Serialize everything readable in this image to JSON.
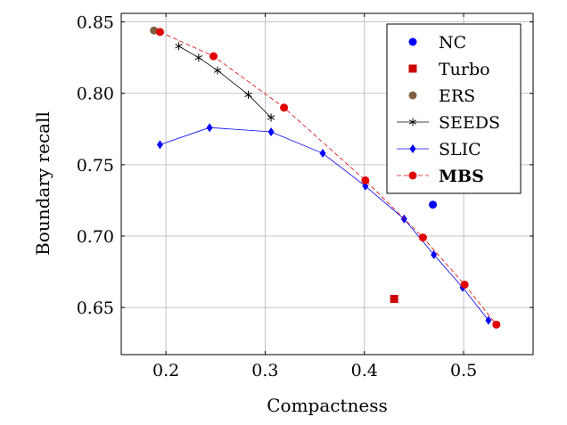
{
  "chart_data": {
    "type": "line",
    "xlabel": "Compactness",
    "ylabel": "Boundary recall",
    "xlim": [
      0.155,
      0.57
    ],
    "ylim": [
      0.617,
      0.856
    ],
    "x_ticks": [
      0.2,
      0.3,
      0.4,
      0.5
    ],
    "x_tick_labels": [
      "0.2",
      "0.3",
      "0.4",
      "0.5"
    ],
    "y_ticks": [
      0.65,
      0.7,
      0.75,
      0.8,
      0.85
    ],
    "y_tick_labels": [
      "0.65",
      "0.70",
      "0.75",
      "0.80",
      "0.85"
    ],
    "grid": true,
    "legend_position": "top-right",
    "series": [
      {
        "name": "NC",
        "color": "#0000ff",
        "marker": "circle",
        "line": "none",
        "points": [
          [
            0.469,
            0.722
          ]
        ]
      },
      {
        "name": "Turbo",
        "color": "#cc0000",
        "marker": "square",
        "line": "none",
        "points": [
          [
            0.43,
            0.656
          ]
        ]
      },
      {
        "name": "ERS",
        "color": "#7f5f3f",
        "marker": "circle",
        "line": "none",
        "points": [
          [
            0.188,
            0.844
          ]
        ]
      },
      {
        "name": "SEEDS",
        "color": "#000000",
        "marker": "star",
        "line": "solid",
        "points": [
          [
            0.213,
            0.833
          ],
          [
            0.233,
            0.825
          ],
          [
            0.252,
            0.816
          ],
          [
            0.283,
            0.799
          ],
          [
            0.306,
            0.783
          ]
        ]
      },
      {
        "name": "SLIC",
        "color": "#0000ff",
        "marker": "diamond",
        "line": "solid",
        "points": [
          [
            0.194,
            0.764
          ],
          [
            0.244,
            0.776
          ],
          [
            0.306,
            0.773
          ],
          [
            0.358,
            0.758
          ],
          [
            0.401,
            0.735
          ],
          [
            0.44,
            0.712
          ],
          [
            0.47,
            0.687
          ],
          [
            0.499,
            0.664
          ],
          [
            0.525,
            0.641
          ]
        ]
      },
      {
        "name": "MBS",
        "color": "#e00000",
        "marker": "circle",
        "line": "dashed",
        "bold": true,
        "points": [
          [
            0.194,
            0.843
          ],
          [
            0.248,
            0.826
          ],
          [
            0.319,
            0.79
          ],
          [
            0.401,
            0.739
          ],
          [
            0.459,
            0.699
          ],
          [
            0.501,
            0.666
          ],
          [
            0.533,
            0.638
          ]
        ]
      }
    ]
  }
}
